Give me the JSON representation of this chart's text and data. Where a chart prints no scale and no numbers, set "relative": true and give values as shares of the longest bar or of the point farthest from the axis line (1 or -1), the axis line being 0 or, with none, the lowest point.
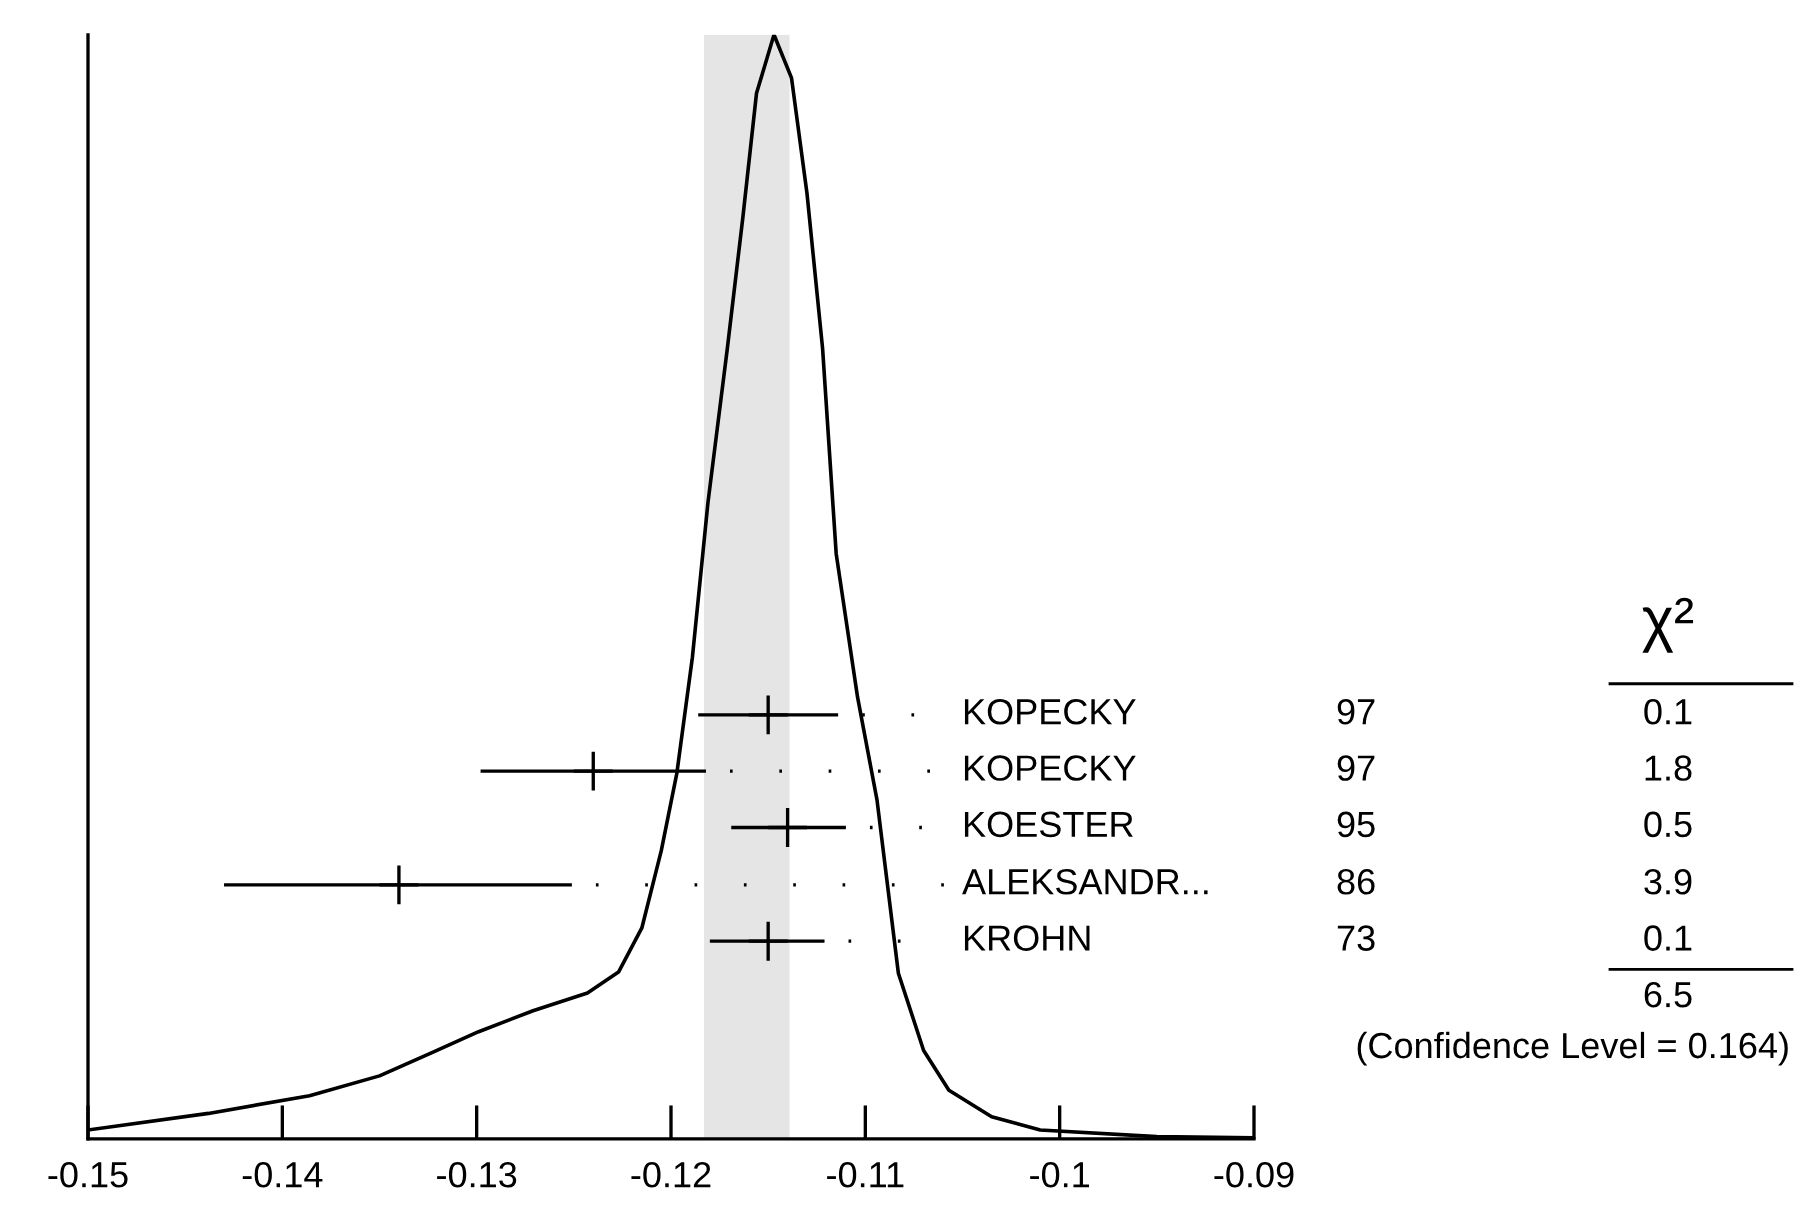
{
  "chart_data": {
    "type": "line",
    "relative": true,
    "tick_labels": "x",
    "xlim": [
      -0.15,
      -0.09
    ],
    "xticks": [
      -0.15,
      -0.14,
      -0.13,
      -0.12,
      -0.11,
      -0.1,
      -0.09
    ],
    "grid": false,
    "bands": [
      {
        "axis": "x",
        "from": -0.1183,
        "to": -0.1139,
        "color": "#e5e5e5"
      }
    ],
    "series": [
      {
        "color": "#000000",
        "x": [
          -0.15,
          -0.1438,
          -0.1386,
          -0.135,
          -0.1323,
          -0.1299,
          -0.1271,
          -0.1243,
          -0.1227,
          -0.1215,
          -0.1205,
          -0.1197,
          -0.1189,
          -0.1181,
          -0.1171,
          -0.1163,
          -0.1156,
          -0.1147,
          -0.1138,
          -0.113,
          -0.1122,
          -0.1115,
          -0.1104,
          -0.1094,
          -0.1083,
          -0.107,
          -0.1057,
          -0.1035,
          -0.101,
          -0.095,
          -0.09
        ],
        "values": [
          0.008,
          0.023,
          0.039,
          0.057,
          0.078,
          0.097,
          0.116,
          0.132,
          0.151,
          0.191,
          0.261,
          0.331,
          0.436,
          0.576,
          0.716,
          0.835,
          0.947,
          1.0,
          0.961,
          0.856,
          0.716,
          0.53,
          0.4,
          0.307,
          0.15,
          0.08,
          0.044,
          0.02,
          0.008,
          0.002,
          0.001
        ]
      },
      {
        "type": "scatter",
        "color": "#000000",
        "marker": "cross",
        "x": [
          -0.115,
          -0.124,
          -0.114,
          -0.134,
          -0.115
        ],
        "values": [
          0.384,
          0.333,
          0.282,
          0.23,
          0.179
        ],
        "xerrors": [
          [
            -0.1186,
            -0.1114
          ],
          [
            -0.1298,
            -0.1182
          ],
          [
            -0.1169,
            -0.111
          ],
          [
            -0.143,
            -0.1251
          ],
          [
            -0.118,
            -0.1121
          ]
        ]
      }
    ],
    "annotations": [
      "KOPECKY",
      "KOPECKY",
      "KOESTER",
      "ALEKSANDR...",
      "KROHN",
      "97",
      "97",
      "95",
      "86",
      "73",
      "χ²",
      "0.1",
      "1.8",
      "0.5",
      "3.9",
      "0.1",
      "6.5",
      "(Confidence Level = 0.164)"
    ]
  }
}
